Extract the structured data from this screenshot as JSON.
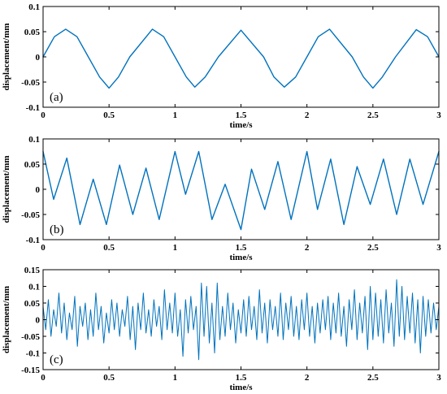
{
  "chart_data": [
    {
      "type": "line",
      "panel_tag": "(a)",
      "xlabel": "time/s",
      "ylabel": "displacement/mm",
      "xlim": [
        0,
        3
      ],
      "ylim": [
        -0.1,
        0.1
      ],
      "x_ticks": [
        0,
        0.5,
        1,
        1.5,
        2,
        2.5,
        3
      ],
      "x_tick_labels": [
        "0",
        "0.5",
        "1",
        "1.5",
        "2",
        "2.5",
        "3"
      ],
      "y_ticks": [
        -0.1,
        -0.05,
        0,
        0.05,
        0.1
      ],
      "y_tick_labels": [
        "-0.1",
        "-0.05",
        "0",
        "0.05",
        "0.1"
      ],
      "grid": false,
      "color": "#0072BD",
      "series": [
        {
          "x": [
            0,
            0.0857,
            0.1714,
            0.2571,
            0.3429,
            0.4286,
            0.5,
            0.5714,
            0.6571,
            0.8286,
            0.9143,
            1.0,
            1.0857,
            1.15,
            1.2286,
            1.3286,
            1.5,
            1.6714,
            1.75,
            1.8286,
            1.9143,
            2.0,
            2.0857,
            2.1714,
            2.3429,
            2.4286,
            2.5,
            2.5714,
            2.6714,
            2.8286,
            2.9143,
            3.0
          ],
          "y": [
            0.0,
            0.04,
            0.055,
            0.04,
            0.0,
            -0.04,
            -0.062,
            -0.04,
            0.0,
            0.055,
            0.04,
            0.0,
            -0.04,
            -0.06,
            -0.04,
            0.0,
            0.053,
            0.0,
            -0.04,
            -0.06,
            -0.04,
            0.0,
            0.04,
            0.055,
            0.0,
            -0.04,
            -0.062,
            -0.04,
            0.0,
            0.054,
            0.04,
            0.0
          ]
        }
      ]
    },
    {
      "type": "line",
      "panel_tag": "(b)",
      "xlabel": "time/s",
      "ylabel": "displacement/mm",
      "xlim": [
        0,
        3
      ],
      "ylim": [
        -0.1,
        0.1
      ],
      "x_ticks": [
        0,
        0.5,
        1,
        1.5,
        2,
        2.5,
        3
      ],
      "x_tick_labels": [
        "0",
        "0.5",
        "1",
        "1.5",
        "2",
        "2.5",
        "3"
      ],
      "y_ticks": [
        -0.1,
        -0.05,
        0,
        0.05,
        0.1
      ],
      "y_tick_labels": [
        "-0.1",
        "-0.05",
        "0",
        "0.05",
        "0.1"
      ],
      "grid": false,
      "color": "#0072BD",
      "series": [
        {
          "x": [
            0,
            0.08,
            0.18,
            0.28,
            0.38,
            0.48,
            0.58,
            0.68,
            0.78,
            0.88,
            1.0,
            1.08,
            1.18,
            1.28,
            1.38,
            1.5,
            1.58,
            1.68,
            1.78,
            1.88,
            2.0,
            2.08,
            2.18,
            2.28,
            2.38,
            2.48,
            2.58,
            2.68,
            2.78,
            2.88,
            3.0
          ],
          "y": [
            0.075,
            -0.02,
            0.062,
            -0.07,
            0.02,
            -0.07,
            0.048,
            -0.05,
            0.042,
            -0.06,
            0.075,
            -0.01,
            0.075,
            -0.06,
            0.01,
            -0.08,
            0.04,
            -0.04,
            0.055,
            -0.06,
            0.075,
            -0.04,
            0.06,
            -0.07,
            0.045,
            -0.03,
            0.06,
            -0.05,
            0.06,
            -0.03,
            0.075
          ]
        }
      ]
    },
    {
      "type": "line",
      "panel_tag": "(c)",
      "xlabel": "time/s",
      "ylabel": "displacement/mm",
      "xlim": [
        0,
        3
      ],
      "ylim": [
        -0.15,
        0.15
      ],
      "x_ticks": [
        0,
        0.5,
        1,
        1.5,
        2,
        2.5,
        3
      ],
      "x_tick_labels": [
        "0",
        "0.5",
        "1",
        "1.5",
        "2",
        "2.5",
        "3"
      ],
      "y_ticks": [
        -0.15,
        -0.1,
        -0.05,
        0,
        0.05,
        0.1,
        0.15
      ],
      "y_tick_labels": [
        "-0.15",
        "-0.1",
        "-0.05",
        "0",
        "0.05",
        "0.1",
        "0.15"
      ],
      "grid": false,
      "color": "#0072BD",
      "series": [
        {
          "x": [
            0,
            0.02,
            0.04,
            0.06,
            0.08,
            0.1,
            0.12,
            0.14,
            0.16,
            0.18,
            0.2,
            0.22,
            0.24,
            0.26,
            0.28,
            0.3,
            0.32,
            0.34,
            0.36,
            0.38,
            0.4,
            0.42,
            0.44,
            0.46,
            0.48,
            0.5,
            0.52,
            0.54,
            0.56,
            0.58,
            0.6,
            0.62,
            0.64,
            0.66,
            0.68,
            0.7,
            0.72,
            0.74,
            0.76,
            0.78,
            0.8,
            0.82,
            0.84,
            0.86,
            0.88,
            0.9,
            0.92,
            0.94,
            0.96,
            0.98,
            1.0,
            1.02,
            1.04,
            1.06,
            1.08,
            1.1,
            1.12,
            1.14,
            1.16,
            1.18,
            1.2,
            1.22,
            1.24,
            1.26,
            1.28,
            1.3,
            1.32,
            1.34,
            1.36,
            1.38,
            1.4,
            1.42,
            1.44,
            1.46,
            1.48,
            1.5,
            1.52,
            1.54,
            1.56,
            1.58,
            1.6,
            1.62,
            1.64,
            1.66,
            1.68,
            1.7,
            1.72,
            1.74,
            1.76,
            1.78,
            1.8,
            1.82,
            1.84,
            1.86,
            1.88,
            1.9,
            1.92,
            1.94,
            1.96,
            1.98,
            2.0,
            2.02,
            2.04,
            2.06,
            2.08,
            2.1,
            2.12,
            2.14,
            2.16,
            2.18,
            2.2,
            2.22,
            2.24,
            2.26,
            2.28,
            2.3,
            2.32,
            2.34,
            2.36,
            2.38,
            2.4,
            2.42,
            2.44,
            2.46,
            2.48,
            2.5,
            2.52,
            2.54,
            2.56,
            2.58,
            2.6,
            2.62,
            2.64,
            2.66,
            2.68,
            2.7,
            2.72,
            2.74,
            2.76,
            2.78,
            2.8,
            2.82,
            2.84,
            2.86,
            2.88,
            2.9,
            2.92,
            2.94,
            2.96,
            2.98,
            3.0
          ],
          "y": [
            0.04,
            -0.03,
            0.06,
            -0.05,
            0.03,
            -0.02,
            0.08,
            -0.04,
            0.05,
            -0.06,
            0.02,
            -0.03,
            0.07,
            -0.08,
            0.04,
            -0.02,
            0.05,
            -0.06,
            0.03,
            -0.05,
            0.08,
            -0.03,
            0.04,
            -0.07,
            0.02,
            -0.04,
            0.06,
            -0.03,
            0.05,
            -0.05,
            0.03,
            -0.02,
            0.07,
            -0.06,
            0.04,
            -0.09,
            0.05,
            -0.03,
            0.08,
            -0.04,
            0.03,
            -0.05,
            0.06,
            -0.02,
            0.04,
            -0.06,
            0.09,
            -0.03,
            0.05,
            -0.04,
            0.08,
            -0.05,
            0.03,
            -0.11,
            0.06,
            -0.04,
            0.07,
            -0.03,
            0.04,
            -0.12,
            0.11,
            -0.05,
            0.1,
            -0.07,
            0.05,
            -0.1,
            0.11,
            -0.06,
            0.04,
            -0.05,
            0.08,
            -0.03,
            0.05,
            -0.07,
            0.03,
            -0.04,
            0.06,
            -0.05,
            0.07,
            -0.03,
            0.04,
            -0.06,
            0.09,
            -0.04,
            0.05,
            -0.07,
            0.06,
            -0.03,
            0.04,
            -0.05,
            0.08,
            -0.06,
            0.05,
            -0.03,
            0.07,
            -0.05,
            0.04,
            -0.06,
            0.06,
            -0.03,
            0.08,
            -0.05,
            0.04,
            -0.07,
            0.05,
            -0.04,
            0.06,
            -0.03,
            0.07,
            -0.06,
            0.05,
            -0.04,
            0.08,
            -0.05,
            0.04,
            -0.08,
            0.06,
            -0.03,
            0.09,
            -0.06,
            0.05,
            -0.04,
            0.07,
            -0.09,
            0.1,
            -0.06,
            0.08,
            -0.05,
            0.06,
            -0.07,
            0.09,
            -0.04,
            0.05,
            -0.08,
            0.12,
            -0.05,
            0.1,
            -0.06,
            0.07,
            -0.04,
            0.08,
            -0.07,
            0.06,
            -0.1,
            0.07,
            -0.05,
            0.06,
            -0.04,
            0.05,
            -0.03,
            0.04
          ]
        }
      ]
    }
  ]
}
